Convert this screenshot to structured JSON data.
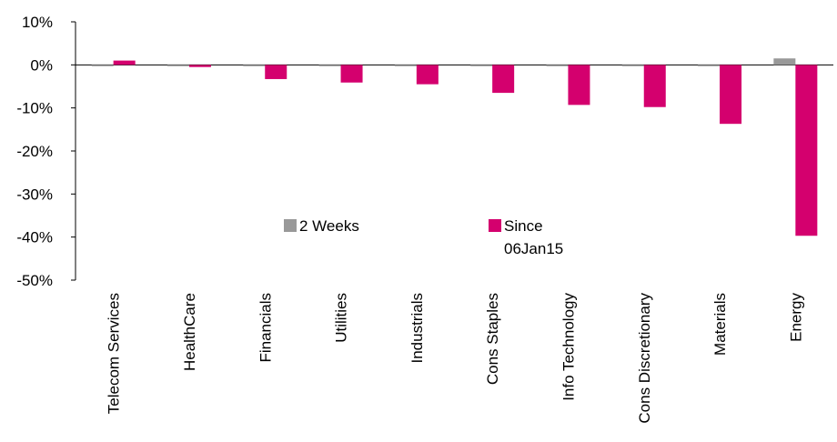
{
  "chart_data": {
    "type": "bar",
    "categories": [
      "Telecom Services",
      "HealthCare",
      "Financials",
      "Utilities",
      "Industrials",
      "Cons Staples",
      "Info Technology",
      "Cons Discretionary",
      "Materials",
      "Energy"
    ],
    "series": [
      {
        "name": "2 Weeks",
        "values": [
          -0.3,
          -0.3,
          -0.3,
          -0.3,
          -0.3,
          -0.3,
          -0.3,
          -0.3,
          -0.3,
          1.5
        ],
        "color": "#999999"
      },
      {
        "name": "Since 06Jan15",
        "values": [
          1.0,
          -0.5,
          -3.3,
          -4.1,
          -4.5,
          -6.5,
          -9.3,
          -9.8,
          -13.7,
          -39.7
        ],
        "color": "#d4006e"
      }
    ],
    "ylim": [
      -50,
      10
    ],
    "yticks": [
      10,
      0,
      -10,
      -20,
      -30,
      -40,
      -50
    ],
    "ytick_labels": [
      "10%",
      "0%",
      "-10%",
      "-20%",
      "-30%",
      "-40%",
      "-50%"
    ],
    "legend": {
      "position": "center",
      "entries": [
        {
          "lines": [
            "2 Weeks"
          ]
        },
        {
          "lines": [
            "Since",
            "06Jan15"
          ]
        }
      ]
    },
    "title": "",
    "xlabel": "",
    "ylabel": ""
  }
}
